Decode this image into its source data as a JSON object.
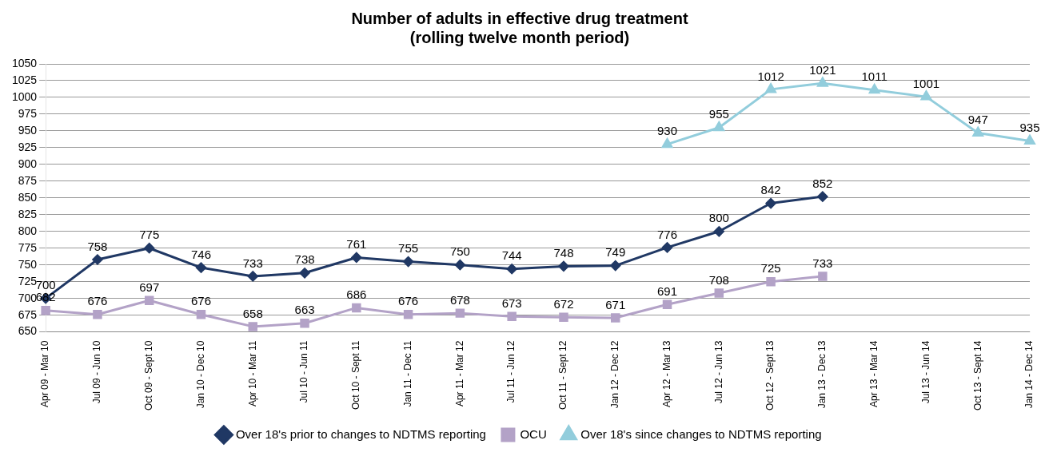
{
  "chart_data": {
    "type": "line",
    "title": "Number of adults in effective drug treatment\n(rolling twelve month period)",
    "categories": [
      "Apr 09 - Mar 10",
      "Jul 09 - Jun 10",
      "Oct 09 - Sept 10",
      "Jan 10 - Dec 10",
      "Apr 10 - Mar 11",
      "Jul 10 - Jun 11",
      "Oct 10 - Sept 11",
      "Jan 11 - Dec 11",
      "Apr 11 - Mar 12",
      "Jul 11 - Jun 12",
      "Oct 11 - Sept 12",
      "Jan 12 - Dec 12",
      "Apr 12 - Mar 13",
      "Jul 12 - Jun 13",
      "Oct 12 - Sept 13",
      "Jan 13 - Dec 13",
      "Apr 13 - Mar 14",
      "Jul 13 - Jun 14",
      "Oct 13 - Sept 14",
      "Jan 14 - Dec 14"
    ],
    "series": [
      {
        "name": "Over 18's prior to changes to NDTMS reporting",
        "color": "#203864",
        "marker": "diamond",
        "values": [
          700,
          758,
          775,
          746,
          733,
          738,
          761,
          755,
          750,
          744,
          748,
          749,
          776,
          800,
          842,
          852,
          null,
          null,
          null,
          null
        ]
      },
      {
        "name": "OCU",
        "color": "#b3a2c7",
        "marker": "square",
        "values": [
          682,
          676,
          697,
          676,
          658,
          663,
          686,
          676,
          678,
          673,
          672,
          671,
          691,
          708,
          725,
          733,
          null,
          null,
          null,
          null
        ]
      },
      {
        "name": "Over 18's since changes to NDTMS reporting",
        "color": "#92cddc",
        "marker": "triangle",
        "values": [
          null,
          null,
          null,
          null,
          null,
          null,
          null,
          null,
          null,
          null,
          null,
          null,
          930,
          955,
          1012,
          1021,
          1011,
          1001,
          947,
          935
        ]
      }
    ],
    "ylim": [
      650,
      1050
    ],
    "yticks": [
      650,
      675,
      700,
      725,
      750,
      775,
      800,
      825,
      850,
      875,
      900,
      925,
      950,
      975,
      1000,
      1025,
      1050
    ],
    "grid": "y",
    "legend": "bottom",
    "data_labels": true
  }
}
